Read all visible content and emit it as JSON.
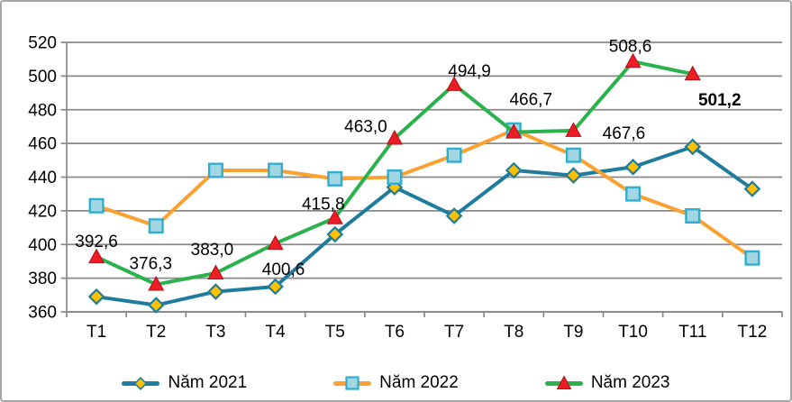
{
  "chart_data": {
    "type": "line",
    "title": "",
    "xlabel": "",
    "ylabel": "",
    "categories": [
      "T1",
      "T2",
      "T3",
      "T4",
      "T5",
      "T6",
      "T7",
      "T8",
      "T9",
      "T10",
      "T11",
      "T12"
    ],
    "series": [
      {
        "name": "Năm 2021",
        "values": [
          369,
          364,
          372,
          375,
          406,
          434,
          417,
          444,
          441,
          446,
          458,
          433
        ],
        "line_color": "#1F7C9C",
        "marker": "diamond",
        "marker_fill": "#FFC000",
        "marker_stroke": "#1F7C9C"
      },
      {
        "name": "Năm 2022",
        "values": [
          423,
          411,
          444,
          444,
          439,
          440,
          453,
          468,
          453,
          430,
          417,
          392
        ],
        "line_color": "#FAA132",
        "marker": "square",
        "marker_fill": "#A3D6E3",
        "marker_stroke": "#2FAECE"
      },
      {
        "name": "Năm 2023",
        "values": [
          392.6,
          376.3,
          383.0,
          400.6,
          415.8,
          463.0,
          494.9,
          466.7,
          467.6,
          508.6,
          501.2
        ],
        "line_color": "#2AB24C",
        "marker": "triangle",
        "marker_fill": "#EE1C25",
        "marker_stroke": "#B01119",
        "data_labels": [
          "392,6",
          "376,3",
          "383,0",
          "400,6",
          "415,8",
          "463,0",
          "494,9",
          "466,7",
          "467,6",
          "508,6",
          "501,2"
        ],
        "bold_label_index": 10,
        "label_offsets": [
          [
            0,
            -11
          ],
          [
            -6,
            -17
          ],
          [
            -4,
            -20
          ],
          [
            9,
            35
          ],
          [
            -13,
            -9
          ],
          [
            -32,
            -7
          ],
          [
            17,
            -9
          ],
          [
            19,
            -30
          ],
          [
            56,
            9
          ],
          [
            -3,
            -11
          ],
          [
            30,
            35
          ]
        ]
      }
    ],
    "ylim": [
      360,
      520
    ],
    "ytick_step": 20,
    "ytick_labels": [
      "360",
      "380",
      "400",
      "420",
      "440",
      "460",
      "480",
      "500",
      "520"
    ],
    "grid": true,
    "legend_position": "bottom",
    "colors": {
      "axis": "#898989",
      "tick_text": "#000000",
      "figure_border": "#A6A6A6",
      "background": "#FFFFFF"
    }
  }
}
